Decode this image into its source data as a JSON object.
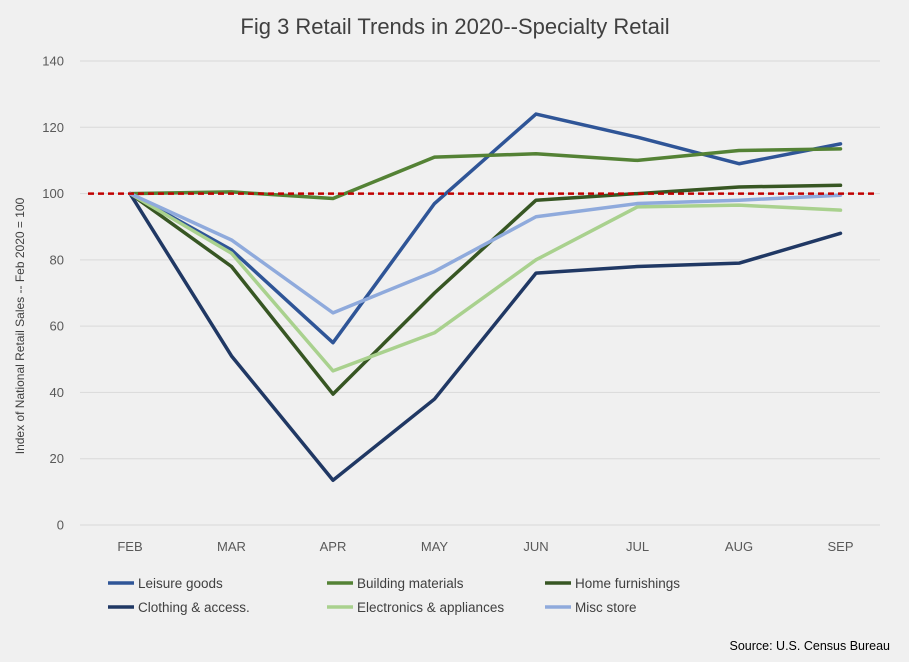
{
  "chart_data": {
    "type": "line",
    "title": "Fig 3 Retail Trends in 2020--Specialty Retail",
    "xlabel": "",
    "ylabel": "Index of National Retail Sales -- Feb 2020 = 100",
    "categories": [
      "FEB",
      "MAR",
      "APR",
      "MAY",
      "JUN",
      "JUL",
      "AUG",
      "SEP"
    ],
    "ylim": [
      0,
      140
    ],
    "yticks": [
      0,
      20,
      40,
      60,
      80,
      100,
      120,
      140
    ],
    "grid": true,
    "legend_position": "bottom",
    "reference_line": {
      "value": 100,
      "color": "#c00000",
      "style": "dashed"
    },
    "series": [
      {
        "name": "Leisure goods",
        "color": "#2f5597",
        "values": [
          100,
          83,
          55,
          97,
          124,
          117,
          109,
          115
        ]
      },
      {
        "name": "Building materials",
        "color": "#548235",
        "values": [
          100,
          100.5,
          98.5,
          111,
          112,
          110,
          113,
          113.5
        ]
      },
      {
        "name": "Home furnishings",
        "color": "#375623",
        "values": [
          100,
          78,
          39.5,
          70,
          98,
          100,
          102,
          102.5
        ]
      },
      {
        "name": "Clothing & access.",
        "color": "#203864",
        "values": [
          100,
          51,
          13.5,
          38,
          76,
          78,
          79,
          88
        ]
      },
      {
        "name": "Electronics & appliances",
        "color": "#a9d18e",
        "values": [
          100,
          82,
          46.5,
          58,
          80,
          96,
          96.5,
          95
        ]
      },
      {
        "name": "Misc store",
        "color": "#8faadc",
        "values": [
          100,
          86,
          64,
          76.5,
          93,
          97,
          98,
          99.5
        ]
      }
    ],
    "source": "Source: U.S. Census Bureau"
  }
}
